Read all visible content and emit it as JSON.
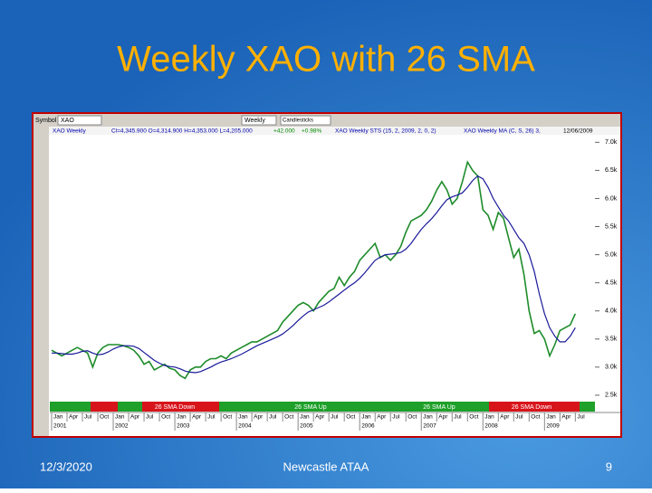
{
  "slide": {
    "title": "Weekly XAO with 26 SMA",
    "footer_date": "12/3/2020",
    "footer_center": "Newcastle ATAA",
    "page_number": "9"
  },
  "toolbar": {
    "symbol_label": "Symbol",
    "symbol": "XAO",
    "period": "Weekly",
    "style": "Candlesticks"
  },
  "chart_data": {
    "type": "line",
    "header": [
      "XAO Weekly",
      "Cl=4,345.900 O=4,314.900 H=4,353.000 L=4,205.000",
      "+42.000",
      "+0.98%",
      "XAO Weekly STS (15, 2, 2009, 2, 0, 2)",
      "XAO Weekly MA (C, S, 26) 3,",
      "12/06/2009"
    ],
    "band_labels": [
      "26 SMA Down",
      "26 SMA Up",
      "26 SMA Up",
      "26 SMA Down"
    ],
    "x": [
      "2001-01",
      "2001-02",
      "2001-03",
      "2001-04",
      "2001-05",
      "2001-06",
      "2001-07",
      "2001-08",
      "2001-09",
      "2001-10",
      "2001-11",
      "2001-12",
      "2002-01",
      "2002-02",
      "2002-03",
      "2002-04",
      "2002-05",
      "2002-06",
      "2002-07",
      "2002-08",
      "2002-09",
      "2002-10",
      "2002-11",
      "2002-12",
      "2003-01",
      "2003-02",
      "2003-03",
      "2003-04",
      "2003-05",
      "2003-06",
      "2003-07",
      "2003-08",
      "2003-09",
      "2003-10",
      "2003-11",
      "2003-12",
      "2004-01",
      "2004-02",
      "2004-03",
      "2004-04",
      "2004-05",
      "2004-06",
      "2004-07",
      "2004-08",
      "2004-09",
      "2004-10",
      "2004-11",
      "2004-12",
      "2005-01",
      "2005-02",
      "2005-03",
      "2005-04",
      "2005-05",
      "2005-06",
      "2005-07",
      "2005-08",
      "2005-09",
      "2005-10",
      "2005-11",
      "2005-12",
      "2006-01",
      "2006-02",
      "2006-03",
      "2006-04",
      "2006-05",
      "2006-06",
      "2006-07",
      "2006-08",
      "2006-09",
      "2006-10",
      "2006-11",
      "2006-12",
      "2007-01",
      "2007-02",
      "2007-03",
      "2007-04",
      "2007-05",
      "2007-06",
      "2007-07",
      "2007-08",
      "2007-09",
      "2007-10",
      "2007-11",
      "2007-12",
      "2008-01",
      "2008-02",
      "2008-03",
      "2008-04",
      "2008-05",
      "2008-06",
      "2008-07",
      "2008-08",
      "2008-09",
      "2008-10",
      "2008-11",
      "2008-12",
      "2009-01",
      "2009-02",
      "2009-03",
      "2009-04",
      "2009-05",
      "2009-06",
      "2009-07"
    ],
    "series": [
      {
        "color": "#1e8c2a",
        "values": [
          3300,
          3250,
          3200,
          3250,
          3300,
          3350,
          3300,
          3250,
          3000,
          3250,
          3350,
          3400,
          3400,
          3400,
          3380,
          3350,
          3300,
          3200,
          3050,
          3100,
          2950,
          3000,
          3050,
          2980,
          2950,
          2850,
          2800,
          2950,
          3000,
          3000,
          3100,
          3150,
          3150,
          3200,
          3150,
          3250,
          3300,
          3350,
          3400,
          3450,
          3450,
          3500,
          3550,
          3600,
          3650,
          3800,
          3900,
          4000,
          4100,
          4150,
          4100,
          4000,
          4150,
          4250,
          4350,
          4400,
          4600,
          4450,
          4600,
          4700,
          4900,
          5000,
          5100,
          5200,
          4950,
          5000,
          4900,
          5000,
          5150,
          5400,
          5600,
          5650,
          5700,
          5800,
          5950,
          6150,
          6300,
          6150,
          5900,
          6000,
          6300,
          6650,
          6500,
          6400,
          5800,
          5700,
          5450,
          5750,
          5650,
          5300,
          4950,
          5100,
          4650,
          4000,
          3600,
          3650,
          3500,
          3200,
          3400,
          3650,
          3700,
          3750,
          3950
        ]
      },
      {
        "color": "#1a1a9a",
        "values": [
          3250,
          3250,
          3240,
          3230,
          3230,
          3250,
          3280,
          3290,
          3250,
          3220,
          3230,
          3270,
          3320,
          3360,
          3380,
          3380,
          3370,
          3330,
          3260,
          3190,
          3120,
          3070,
          3030,
          3010,
          3000,
          2970,
          2930,
          2910,
          2900,
          2920,
          2960,
          3000,
          3050,
          3090,
          3120,
          3150,
          3190,
          3230,
          3280,
          3330,
          3380,
          3420,
          3460,
          3500,
          3540,
          3590,
          3660,
          3740,
          3830,
          3910,
          3980,
          4020,
          4060,
          4100,
          4160,
          4230,
          4300,
          4370,
          4440,
          4500,
          4580,
          4680,
          4790,
          4900,
          4960,
          5000,
          5010,
          5020,
          5040,
          5100,
          5200,
          5330,
          5450,
          5550,
          5640,
          5750,
          5870,
          5980,
          6030,
          6060,
          6100,
          6200,
          6320,
          6400,
          6350,
          6200,
          6000,
          5850,
          5700,
          5600,
          5450,
          5300,
          5200,
          5000,
          4700,
          4300,
          3950,
          3700,
          3550,
          3450,
          3450,
          3550,
          3700
        ]
      }
    ],
    "ylim": [
      2450,
      7150
    ],
    "yticks": [
      {
        "value": 2500,
        "label": "2.5k"
      },
      {
        "value": 3000,
        "label": "3.0k"
      },
      {
        "value": 3500,
        "label": "3.5k"
      },
      {
        "value": 4000,
        "label": "4.0k"
      },
      {
        "value": 4500,
        "label": "4.5k"
      },
      {
        "value": 5000,
        "label": "5.0k"
      },
      {
        "value": 5500,
        "label": "5.5k"
      },
      {
        "value": 6000,
        "label": "6.0k"
      },
      {
        "value": 6500,
        "label": "6.5k"
      },
      {
        "value": 7000,
        "label": "7.0k"
      }
    ],
    "xticks": [
      {
        "value": "2001-01",
        "label": "Jan"
      },
      {
        "value": "2001-04",
        "label": "Apr"
      },
      {
        "value": "2001-07",
        "label": "Jul"
      },
      {
        "value": "2001-10",
        "label": "Oct"
      },
      {
        "value": "2002-01",
        "label": "Jan"
      },
      {
        "value": "2002-04",
        "label": "Apr"
      },
      {
        "value": "2002-07",
        "label": "Jul"
      },
      {
        "value": "2002-10",
        "label": "Oct"
      },
      {
        "value": "2003-01",
        "label": "Jan"
      },
      {
        "value": "2003-04",
        "label": "Apr"
      },
      {
        "value": "2003-07",
        "label": "Jul"
      },
      {
        "value": "2003-10",
        "label": "Oct"
      },
      {
        "value": "2004-01",
        "label": "Jan"
      },
      {
        "value": "2004-04",
        "label": "Apr"
      },
      {
        "value": "2004-07",
        "label": "Jul"
      },
      {
        "value": "2004-10",
        "label": "Oct"
      },
      {
        "value": "2005-01",
        "label": "Jan"
      },
      {
        "value": "2005-04",
        "label": "Apr"
      },
      {
        "value": "2005-07",
        "label": "Jul"
      },
      {
        "value": "2005-10",
        "label": "Oct"
      },
      {
        "value": "2006-01",
        "label": "Jan"
      },
      {
        "value": "2006-04",
        "label": "Apr"
      },
      {
        "value": "2006-07",
        "label": "Jul"
      },
      {
        "value": "2006-10",
        "label": "Oct"
      },
      {
        "value": "2007-01",
        "label": "Jan"
      },
      {
        "value": "2007-04",
        "label": "Apr"
      },
      {
        "value": "2007-07",
        "label": "Jul"
      },
      {
        "value": "2007-10",
        "label": "Oct"
      },
      {
        "value": "2008-01",
        "label": "Jan"
      },
      {
        "value": "2008-04",
        "label": "Apr"
      },
      {
        "value": "2008-07",
        "label": "Jul"
      },
      {
        "value": "2008-10",
        "label": "Oct"
      },
      {
        "value": "2009-01",
        "label": "Jan"
      },
      {
        "value": "2009-04",
        "label": "Apr"
      },
      {
        "value": "2009-07",
        "label": "Jul"
      }
    ],
    "year_ticks": [
      {
        "value": "2001-01",
        "label": "2001"
      },
      {
        "value": "2002-01",
        "label": "2002"
      },
      {
        "value": "2003-01",
        "label": "2003"
      },
      {
        "value": "2004-01",
        "label": "2004"
      },
      {
        "value": "2005-01",
        "label": "2005"
      },
      {
        "value": "2006-01",
        "label": "2006"
      },
      {
        "value": "2007-01",
        "label": "2007"
      },
      {
        "value": "2008-01",
        "label": "2008"
      },
      {
        "value": "2009-01",
        "label": "2009"
      }
    ],
    "grid": false
  }
}
